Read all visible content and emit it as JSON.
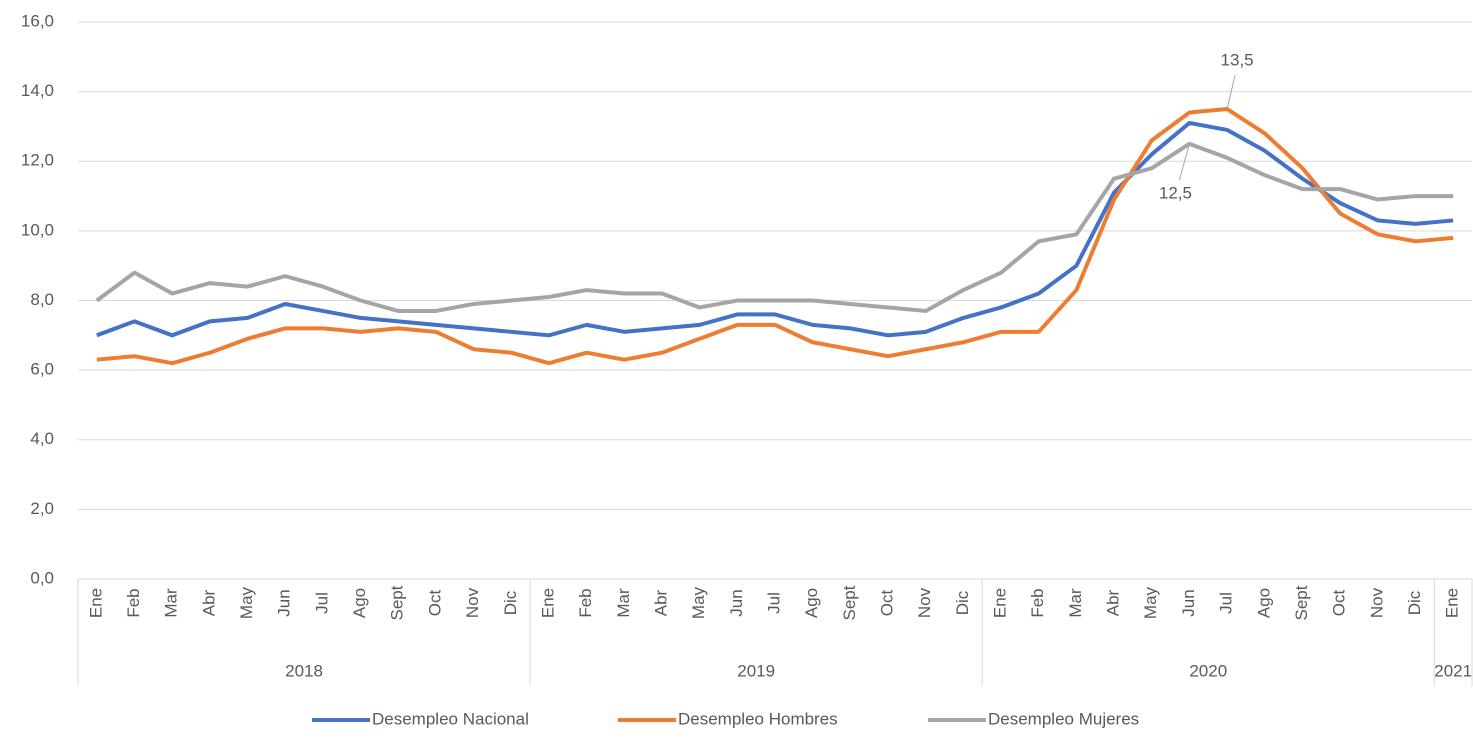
{
  "chart_data": {
    "type": "line",
    "categories": [
      "Ene",
      "Feb",
      "Mar",
      "Abr",
      "May",
      "Jun",
      "Jul",
      "Ago",
      "Sept",
      "Oct",
      "Nov",
      "Dic",
      "Ene",
      "Feb",
      "Mar",
      "Abr",
      "May",
      "Jun",
      "Jul",
      "Ago",
      "Sept",
      "Oct",
      "Nov",
      "Dic",
      "Ene",
      "Feb",
      "Mar",
      "Abr",
      "May",
      "Jun",
      "Jul",
      "Ago",
      "Sept",
      "Oct",
      "Nov",
      "Dic",
      "Ene"
    ],
    "years": [
      "2018",
      "2019",
      "2020",
      "2021"
    ],
    "series": [
      {
        "name": "Desempleo Nacional",
        "color": "#4472c4",
        "values": [
          7.0,
          7.4,
          7.0,
          7.4,
          7.5,
          7.9,
          7.7,
          7.5,
          7.4,
          7.3,
          7.2,
          7.1,
          7.0,
          7.3,
          7.1,
          7.2,
          7.3,
          7.6,
          7.6,
          7.3,
          7.2,
          7.0,
          7.1,
          7.5,
          7.8,
          8.2,
          9.0,
          11.1,
          12.2,
          13.1,
          12.9,
          12.3,
          11.5,
          10.8,
          10.3,
          10.2,
          10.3
        ]
      },
      {
        "name": "Desempleo Hombres",
        "color": "#ed7d31",
        "values": [
          6.3,
          6.4,
          6.2,
          6.5,
          6.9,
          7.2,
          7.2,
          7.1,
          7.2,
          7.1,
          6.6,
          6.5,
          6.2,
          6.5,
          6.3,
          6.5,
          6.9,
          7.3,
          7.3,
          6.8,
          6.6,
          6.4,
          6.6,
          6.8,
          7.1,
          7.1,
          8.3,
          10.9,
          12.6,
          13.4,
          13.5,
          12.8,
          11.8,
          10.5,
          9.9,
          9.7,
          9.8
        ],
        "value_labels": [
          null,
          null,
          null,
          null,
          null,
          null,
          null,
          null,
          null,
          null,
          null,
          null,
          null,
          null,
          null,
          null,
          null,
          null,
          null,
          null,
          null,
          null,
          null,
          null,
          null,
          null,
          null,
          null,
          null,
          null,
          "13,5",
          null,
          null,
          null,
          null,
          null,
          null
        ]
      },
      {
        "name": "Desempleo Mujeres",
        "color": "#a5a5a5",
        "values": [
          8.0,
          8.8,
          8.2,
          8.5,
          8.4,
          8.7,
          8.4,
          8.0,
          7.7,
          7.7,
          7.9,
          8.0,
          8.1,
          8.3,
          8.2,
          8.2,
          7.8,
          8.0,
          8.0,
          8.0,
          7.9,
          7.8,
          7.7,
          8.3,
          8.8,
          9.7,
          9.9,
          11.5,
          11.8,
          12.5,
          12.1,
          11.6,
          11.2,
          11.2,
          10.9,
          11.0,
          11.0
        ],
        "value_labels": [
          null,
          null,
          null,
          null,
          null,
          null,
          null,
          null,
          null,
          null,
          null,
          null,
          null,
          null,
          null,
          null,
          null,
          null,
          null,
          null,
          null,
          null,
          null,
          null,
          null,
          null,
          null,
          null,
          null,
          "12,5",
          null,
          null,
          null,
          null,
          null,
          null,
          null
        ]
      }
    ],
    "ylim": [
      0,
      16
    ],
    "yticks": [
      {
        "value": 0,
        "label": "0,0"
      },
      {
        "value": 2,
        "label": "2,0"
      },
      {
        "value": 4,
        "label": "4,0"
      },
      {
        "value": 6,
        "label": "6,0"
      },
      {
        "value": 8,
        "label": "8,0"
      },
      {
        "value": 10,
        "label": "10,0"
      },
      {
        "value": 12,
        "label": "12,0"
      },
      {
        "value": 14,
        "label": "14,0"
      },
      {
        "value": 16,
        "label": "16,0"
      }
    ],
    "grid": true
  }
}
